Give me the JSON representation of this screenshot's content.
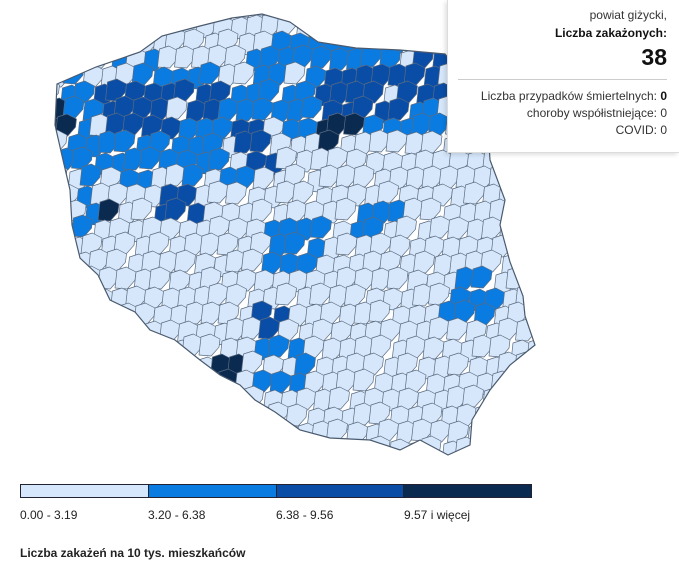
{
  "tooltip": {
    "county": "powiat giżycki,",
    "cases_label": "Liczba zakażonych:",
    "cases_value": "38",
    "deaths_label": "Liczba przypadków śmiertelnych:",
    "deaths_value": "0",
    "comorbid_label": "choroby współistniejące:",
    "comorbid_value": "0",
    "covid_label": "COVID:",
    "covid_value": "0"
  },
  "legend": {
    "items": [
      {
        "label": "0.00 - 3.19",
        "color": "#d6e7fb"
      },
      {
        "label": "3.20 - 6.38",
        "color": "#0a7be0"
      },
      {
        "label": "6.38 - 9.56",
        "color": "#0a4da6"
      },
      {
        "label": "9.57 i więcej",
        "color": "#0b2a50"
      }
    ]
  },
  "footnote": "Liczba zakażeń na 10 tys. mieszkańców",
  "map": {
    "unit": "Liczba zakażeń na 10 tys. mieszkańców",
    "hovered_region": "powiat giżycki",
    "background_color": "#d6e7fb",
    "border_color": "#5a6b80"
  }
}
